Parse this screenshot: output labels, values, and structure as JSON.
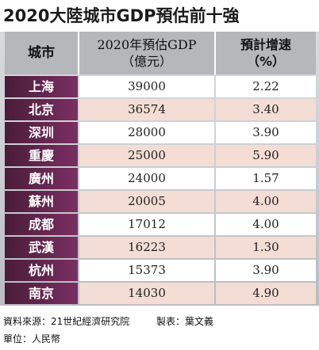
{
  "title": "2020大陸城市GDP預估前十強",
  "colors": {
    "header_bg": "#b6b7ba",
    "city_dark": "#4a1c39",
    "city_light": "#7a2f63",
    "row_white": "#ffffff",
    "row_tint": "#f3ddd4"
  },
  "chart_data": {
    "type": "table",
    "title": "2020大陸城市GDP預估前十強",
    "columns": [
      "城市",
      "2020年預估GDP（億元）",
      "預計增速（%）"
    ],
    "header": {
      "city": "城市",
      "gdp_line1": "2020年預估GDP",
      "gdp_line2": "（億元）",
      "rate_line1": "預計增速",
      "rate_line2": "（%）"
    },
    "rows": [
      {
        "city": "上海",
        "gdp": "39000",
        "rate": "2.22"
      },
      {
        "city": "北京",
        "gdp": "36574",
        "rate": "3.40"
      },
      {
        "city": "深圳",
        "gdp": "28000",
        "rate": "3.90"
      },
      {
        "city": "重慶",
        "gdp": "25000",
        "rate": "5.90"
      },
      {
        "city": "廣州",
        "gdp": "24000",
        "rate": "1.57"
      },
      {
        "city": "蘇州",
        "gdp": "20005",
        "rate": "4.00"
      },
      {
        "city": "成都",
        "gdp": "17012",
        "rate": "4.00"
      },
      {
        "city": "武漢",
        "gdp": "16223",
        "rate": "1.30"
      },
      {
        "city": "杭州",
        "gdp": "15373",
        "rate": "3.90"
      },
      {
        "city": "南京",
        "gdp": "14030",
        "rate": "4.90"
      }
    ]
  },
  "footer": {
    "source": "資料來源：21世紀經濟研究院",
    "maker": "製表：葉文義",
    "unit": "單位：人民幣"
  }
}
